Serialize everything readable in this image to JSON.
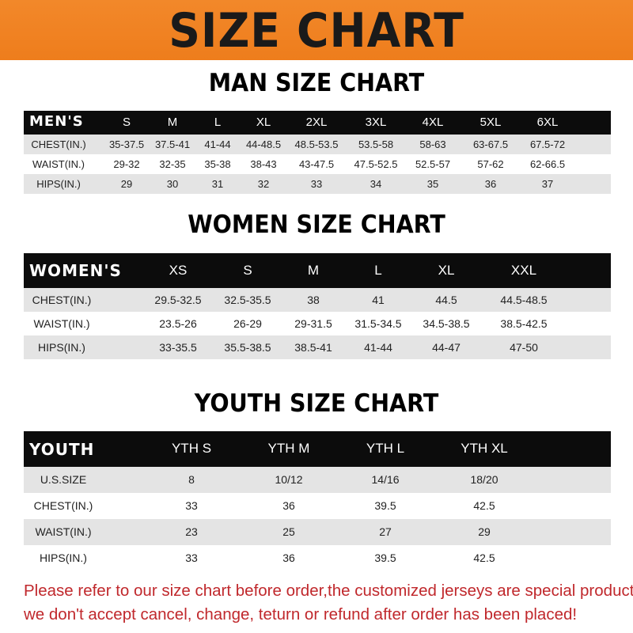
{
  "banner": {
    "title": "SIZE CHART",
    "color": "#ef8022"
  },
  "men": {
    "title": "MAN SIZE CHART",
    "header_label": "MEN'S",
    "sizes": [
      "S",
      "M",
      "L",
      "XL",
      "2XL",
      "3XL",
      "4XL",
      "5XL",
      "6XL"
    ],
    "rows": [
      {
        "label": "CHEST(IN.)",
        "values": [
          "35-37.5",
          "37.5-41",
          "41-44",
          "44-48.5",
          "48.5-53.5",
          "53.5-58",
          "58-63",
          "63-67.5",
          "67.5-72"
        ]
      },
      {
        "label": "WAIST(IN.)",
        "values": [
          "29-32",
          "32-35",
          "35-38",
          "38-43",
          "43-47.5",
          "47.5-52.5",
          "52.5-57",
          "57-62",
          "62-66.5"
        ]
      },
      {
        "label": "HIPS(IN.)",
        "values": [
          "29",
          "30",
          "31",
          "32",
          "33",
          "34",
          "35",
          "36",
          "37"
        ]
      }
    ]
  },
  "women": {
    "title": "WOMEN SIZE CHART",
    "header_label": "WOMEN'S",
    "sizes": [
      "XS",
      "S",
      "M",
      "L",
      "XL",
      "XXL"
    ],
    "rows": [
      {
        "label": "CHEST(IN.)",
        "values": [
          "29.5-32.5",
          "32.5-35.5",
          "38",
          "41",
          "44.5",
          "44.5-48.5"
        ]
      },
      {
        "label": "WAIST(IN.)",
        "values": [
          "23.5-26",
          "26-29",
          "29-31.5",
          "31.5-34.5",
          "34.5-38.5",
          "38.5-42.5"
        ]
      },
      {
        "label": "HIPS(IN.)",
        "values": [
          "33-35.5",
          "35.5-38.5",
          "38.5-41",
          "41-44",
          "44-47",
          "47-50"
        ]
      }
    ]
  },
  "youth": {
    "title": "YOUTH SIZE CHART",
    "header_label": "YOUTH",
    "sizes": [
      "YTH S",
      "YTH M",
      "YTH L",
      "YTH XL"
    ],
    "rows": [
      {
        "label": "U.S.SIZE",
        "values": [
          "8",
          "10/12",
          "14/16",
          "18/20"
        ]
      },
      {
        "label": "CHEST(IN.)",
        "values": [
          "33",
          "36",
          "39.5",
          "42.5"
        ]
      },
      {
        "label": "WAIST(IN.)",
        "values": [
          "23",
          "25",
          "27",
          "29"
        ]
      },
      {
        "label": "HIPS(IN.)",
        "values": [
          "33",
          "36",
          "39.5",
          "42.5"
        ]
      }
    ]
  },
  "notice": {
    "line1": "Please refer to our size chart before order,the customized jerseys are special products,",
    "line2": "we don't accept cancel, change, teturn or refund after order has been placed!",
    "color": "#c0282c"
  }
}
